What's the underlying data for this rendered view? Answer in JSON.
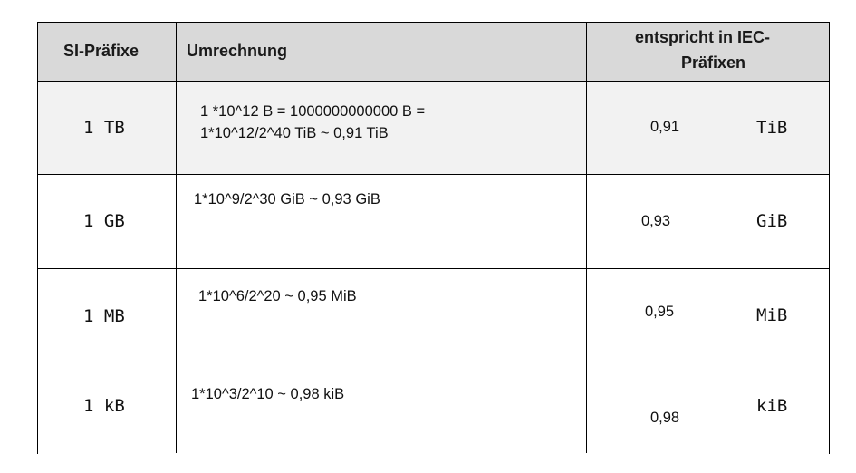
{
  "table": {
    "headers": {
      "si_prefix": "SI-Präfixe",
      "conversion": "Umrechnung",
      "iec_line1": "entspricht in IEC-",
      "iec_line2": "Präfixen"
    },
    "rows": [
      {
        "si": "1 TB",
        "conversion_line1": "1 *10^12 B = 1000000000000 B =",
        "conversion_line2": "1*10^12/2^40 TiB ~ 0,91 TiB",
        "value": "0,91",
        "iec_unit": "TiB"
      },
      {
        "si": "1 GB",
        "conversion_line1": "1*10^9/2^30 GiB ~ 0,93 GiB",
        "value": "0,93",
        "iec_unit": "GiB"
      },
      {
        "si": "1 MB",
        "conversion_line1": "1*10^6/2^20 ~ 0,95 MiB",
        "value": "0,95",
        "iec_unit": "MiB"
      },
      {
        "si": "1 kB",
        "conversion_line1": "1*10^3/2^10 ~ 0,98 kiB",
        "value": "0,98",
        "iec_unit": "kiB"
      }
    ]
  }
}
